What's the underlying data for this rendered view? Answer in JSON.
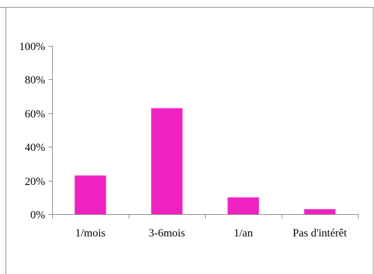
{
  "chart_data": {
    "type": "bar",
    "categories": [
      "1/mois",
      "3-6mois",
      "1/an",
      "Pas d'intérêt"
    ],
    "values": [
      23,
      63,
      10,
      3
    ],
    "title": "",
    "xlabel": "",
    "ylabel": "",
    "ylim": [
      0,
      100
    ],
    "y_ticks": [
      "0%",
      "20%",
      "40%",
      "60%",
      "80%",
      "100%"
    ],
    "y_tick_values": [
      0,
      20,
      40,
      60,
      80,
      100
    ],
    "grid": false,
    "legend": "none",
    "bar_color": "#EE22C0"
  }
}
